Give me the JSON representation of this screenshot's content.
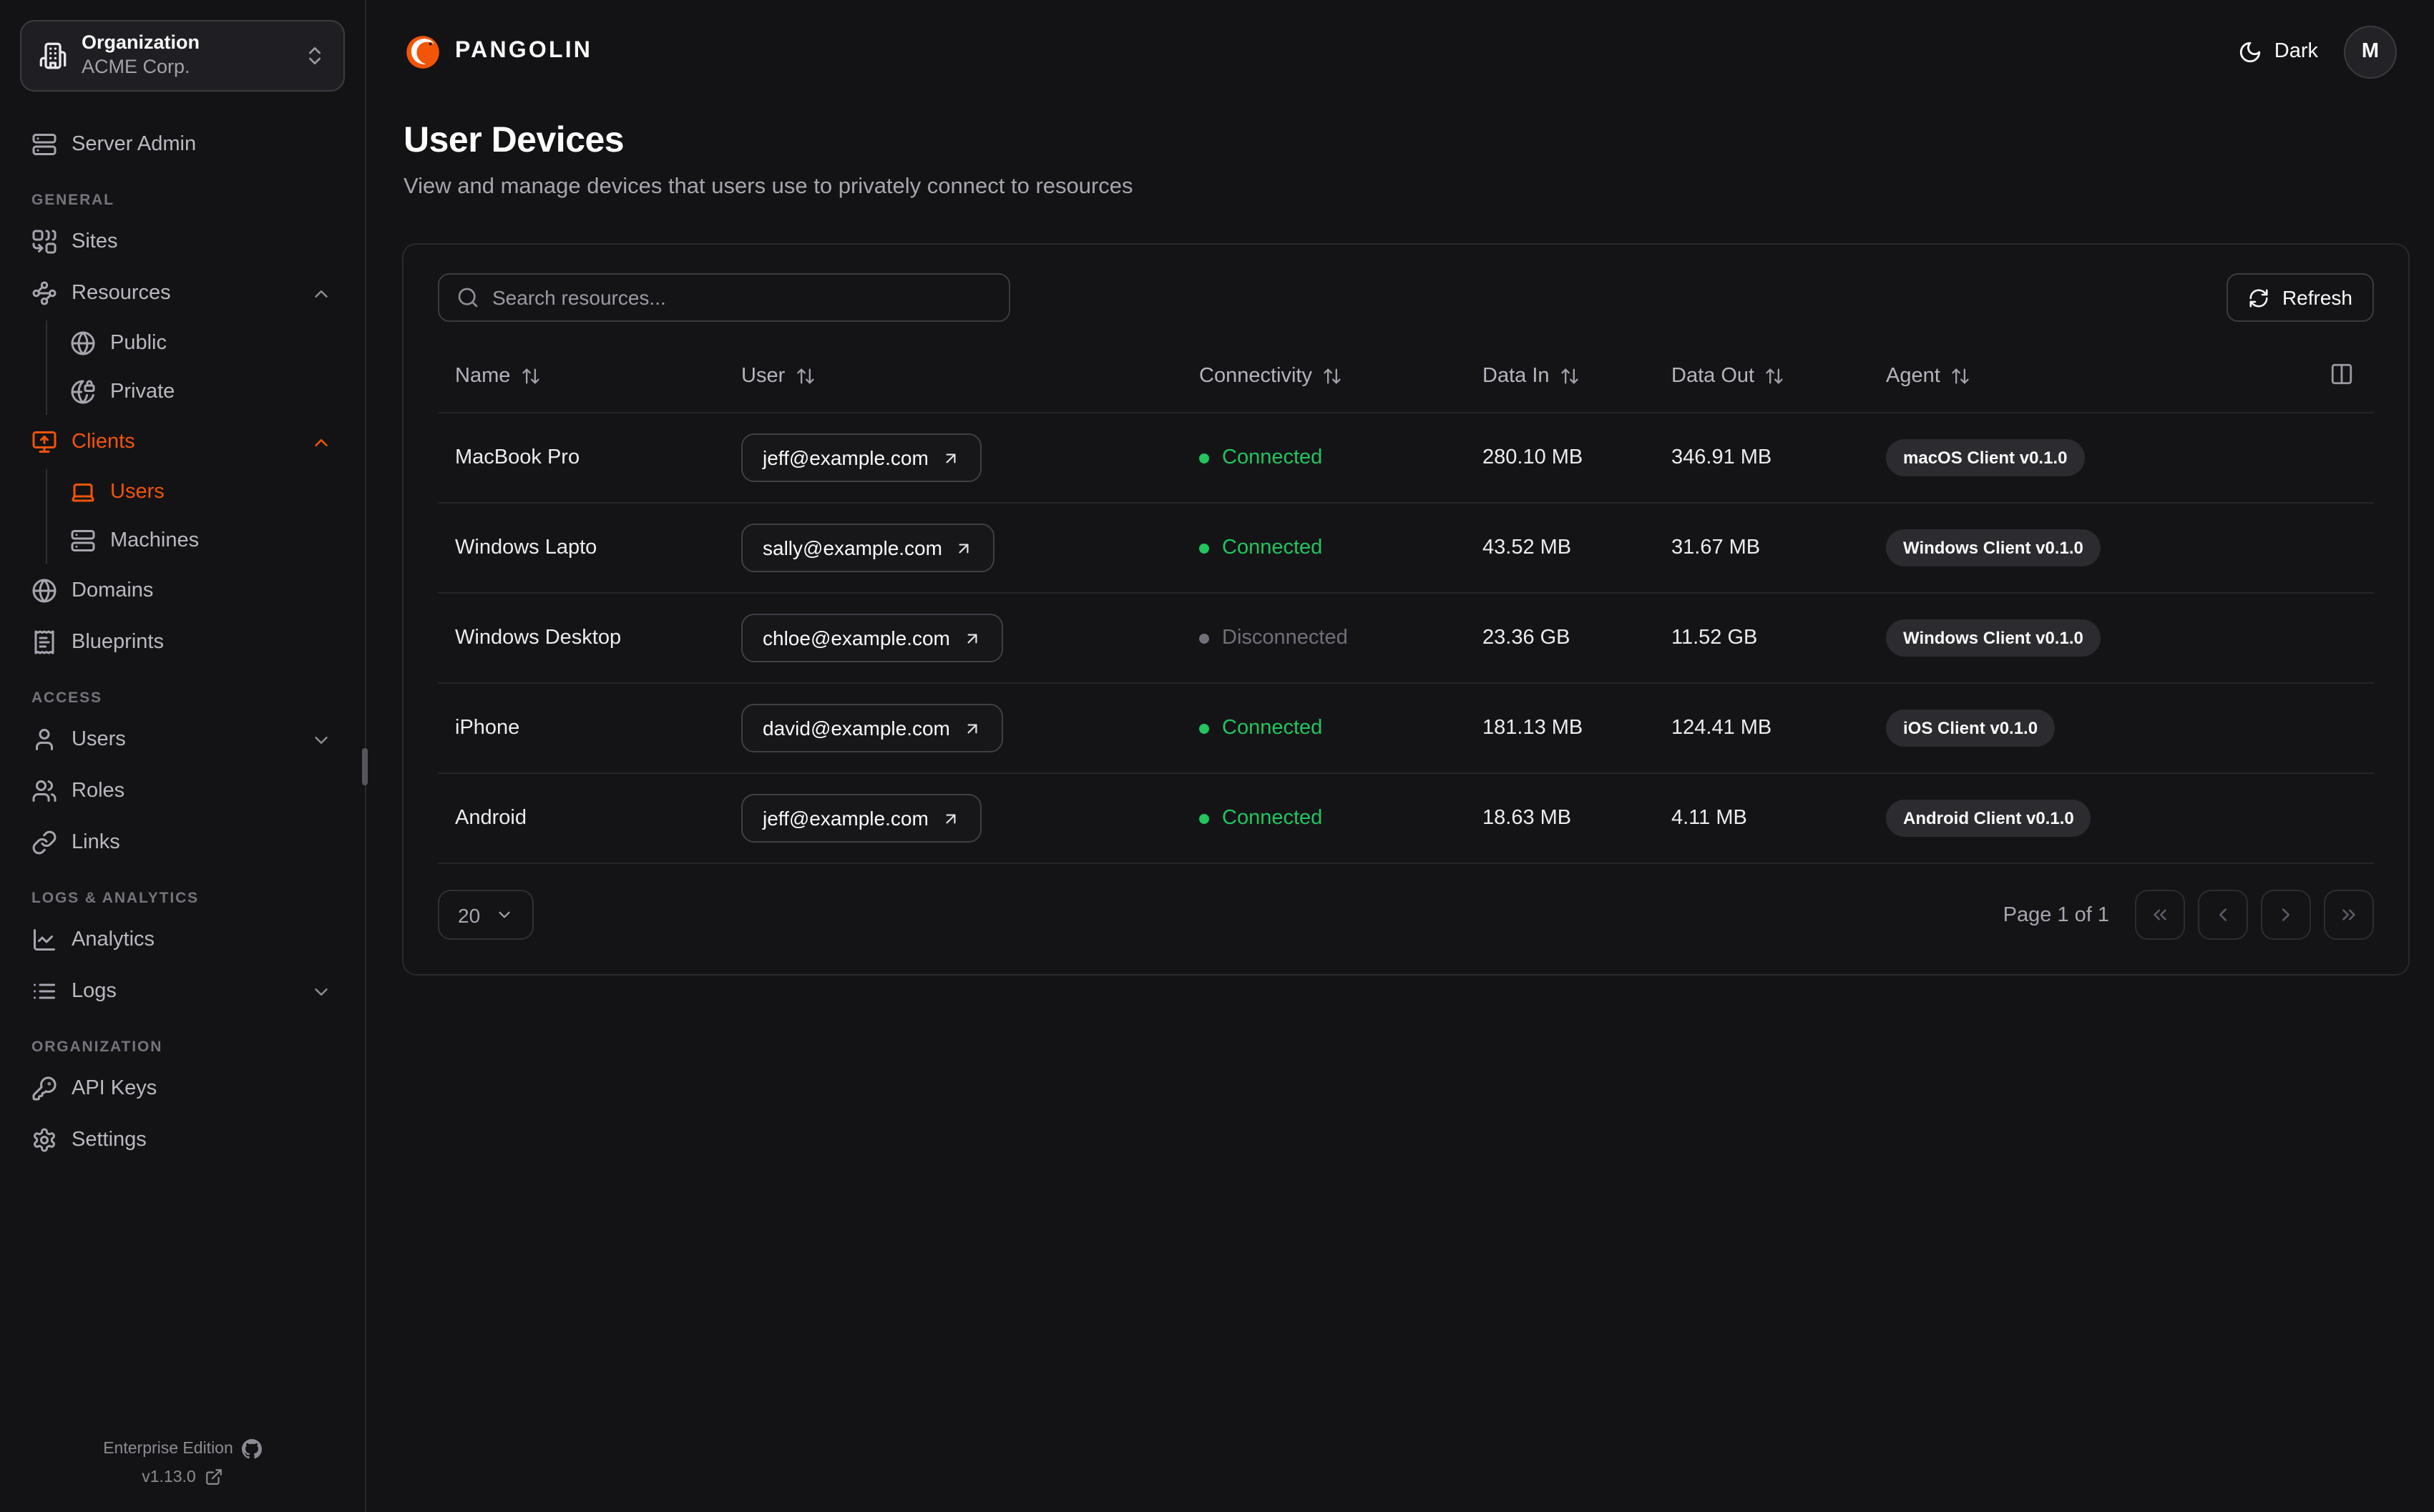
{
  "colors": {
    "accent": "#f25408",
    "connected": "#22c55e",
    "disconnected": "#70707a"
  },
  "org_switcher": {
    "label": "Organization",
    "value": "ACME Corp.",
    "icon": "building-icon"
  },
  "brand": {
    "name": "PANGOLIN",
    "logo": "pangolin-logo"
  },
  "theme_toggle": {
    "label": "Dark",
    "icon": "moon-icon"
  },
  "user_avatar": {
    "initial": "M"
  },
  "sidebar": {
    "sections": [
      {
        "label": "",
        "items": [
          {
            "icon": "server-icon",
            "label": "Server Admin"
          }
        ]
      },
      {
        "label": "GENERAL",
        "items": [
          {
            "icon": "sites-icon",
            "label": "Sites"
          },
          {
            "icon": "resources-icon",
            "label": "Resources",
            "chevron": "up",
            "children": [
              {
                "icon": "globe-icon",
                "label": "Public"
              },
              {
                "icon": "globe-lock-icon",
                "label": "Private"
              }
            ]
          },
          {
            "icon": "monitor-up-icon",
            "label": "Clients",
            "chevron": "up",
            "active": true,
            "children": [
              {
                "icon": "laptop-icon",
                "label": "Users",
                "active": true
              },
              {
                "icon": "server-icon",
                "label": "Machines"
              }
            ]
          },
          {
            "icon": "globe-icon",
            "label": "Domains"
          },
          {
            "icon": "receipt-icon",
            "label": "Blueprints"
          }
        ]
      },
      {
        "label": "ACCESS",
        "items": [
          {
            "icon": "user-icon",
            "label": "Users",
            "chevron": "down"
          },
          {
            "icon": "users-icon",
            "label": "Roles"
          },
          {
            "icon": "link-icon",
            "label": "Links"
          }
        ]
      },
      {
        "label": "LOGS & ANALYTICS",
        "items": [
          {
            "icon": "chart-line-icon",
            "label": "Analytics"
          },
          {
            "icon": "list-icon",
            "label": "Logs",
            "chevron": "down"
          }
        ]
      },
      {
        "label": "ORGANIZATION",
        "items": [
          {
            "icon": "key-icon",
            "label": "API Keys"
          },
          {
            "icon": "gear-icon",
            "label": "Settings"
          }
        ]
      }
    ],
    "footer": {
      "edition": "Enterprise Edition",
      "version": "v1.13.0"
    }
  },
  "main": {
    "title": "User Devices",
    "subtitle": "View and manage devices that users use to privately connect to resources",
    "search": {
      "placeholder": "Search resources..."
    },
    "refresh_label": "Refresh",
    "table": {
      "columns": [
        {
          "label": "Name"
        },
        {
          "label": "User"
        },
        {
          "label": "Connectivity"
        },
        {
          "label": "Data In"
        },
        {
          "label": "Data Out"
        },
        {
          "label": "Agent"
        }
      ],
      "rows": [
        {
          "name": "MacBook Pro",
          "user": "jeff@example.com",
          "connectivity": "Connected",
          "connected": true,
          "data_in": "280.10 MB",
          "data_out": "346.91 MB",
          "agent": "macOS Client v0.1.0"
        },
        {
          "name": "Windows Lapto",
          "user": "sally@example.com",
          "connectivity": "Connected",
          "connected": true,
          "data_in": "43.52 MB",
          "data_out": "31.67 MB",
          "agent": "Windows Client v0.1.0"
        },
        {
          "name": "Windows Desktop",
          "user": "chloe@example.com",
          "connectivity": "Disconnected",
          "connected": false,
          "data_in": "23.36 GB",
          "data_out": "11.52 GB",
          "agent": "Windows Client v0.1.0"
        },
        {
          "name": "iPhone",
          "user": "david@example.com",
          "connectivity": "Connected",
          "connected": true,
          "data_in": "181.13 MB",
          "data_out": "124.41 MB",
          "agent": "iOS Client v0.1.0"
        },
        {
          "name": "Android",
          "user": "jeff@example.com",
          "connectivity": "Connected",
          "connected": true,
          "data_in": "18.63 MB",
          "data_out": "4.11 MB",
          "agent": "Android Client v0.1.0"
        }
      ]
    },
    "pagination": {
      "page_size": "20",
      "info": "Page 1 of 1"
    }
  }
}
